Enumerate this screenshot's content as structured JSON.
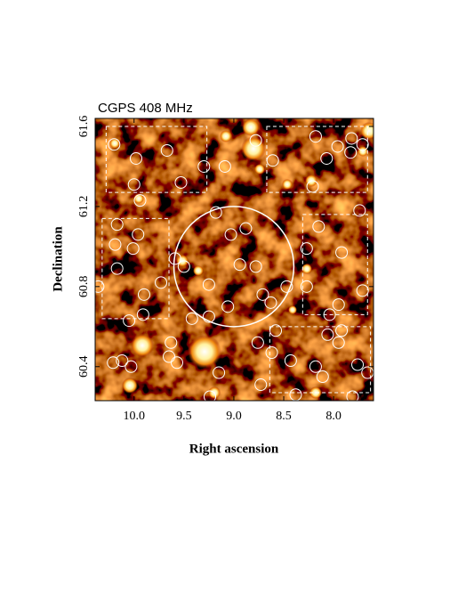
{
  "chart_data": {
    "type": "scatter",
    "title": "CGPS 408 MHz",
    "x_label": "Right ascension",
    "y_label": "Declination",
    "xlim": [
      10.39,
      7.6
    ],
    "ylim": [
      60.23,
      61.64
    ],
    "xticks": [
      {
        "value": 10,
        "label": "10.0"
      },
      9.5,
      {
        "value": 9,
        "label": "9.0"
      },
      8.5,
      {
        "value": 8,
        "label": "8.0"
      }
    ],
    "yticks": [
      60.4,
      60.8,
      61.2,
      61.6
    ],
    "color": "#ffffff",
    "sources": {
      "x": [
        10.2,
        9.98,
        9.67,
        9.3,
        9.09,
        10.0,
        9.53,
        9.94,
        9.18,
        9.03,
        8.88,
        10.17,
        9.96,
        10.19,
        10.01,
        9.59,
        9.5,
        8.94,
        8.78,
        9.25,
        9.73,
        10.17,
        10.36,
        9.9,
        9.42,
        9.25,
        9.06,
        8.71,
        8.63,
        8.47,
        8.27,
        8.15,
        7.92,
        8.27,
        8.04,
        7.95,
        7.71,
        7.74,
        7.71,
        8.18,
        8.07,
        7.96,
        7.83,
        7.82,
        8.21,
        8.61,
        8.78,
        10.05,
        9.91,
        9.63,
        9.65,
        9.57,
        10.21,
        10.12,
        10.03,
        9.24,
        9.15,
        8.73,
        8.62,
        8.43,
        8.18,
        7.95,
        7.92,
        8.06,
        7.76,
        7.66,
        8.76,
        8.58,
        7.81,
        8.38,
        8.11
      ],
      "y": [
        61.51,
        61.44,
        61.48,
        61.4,
        61.4,
        61.31,
        61.32,
        61.23,
        61.17,
        61.06,
        61.09,
        61.11,
        61.06,
        61.01,
        60.99,
        60.94,
        60.9,
        60.91,
        60.9,
        60.81,
        60.82,
        60.89,
        60.8,
        60.76,
        60.64,
        60.65,
        60.7,
        60.76,
        60.72,
        60.8,
        60.99,
        61.1,
        60.97,
        60.8,
        60.66,
        60.71,
        60.78,
        61.18,
        61.51,
        61.55,
        61.44,
        61.5,
        61.47,
        61.54,
        61.3,
        61.43,
        61.53,
        60.63,
        60.66,
        60.52,
        60.45,
        60.42,
        60.42,
        60.43,
        60.4,
        60.25,
        60.37,
        60.31,
        60.47,
        60.43,
        60.4,
        60.52,
        60.58,
        60.56,
        60.41,
        60.37,
        60.52,
        60.58,
        60.25,
        60.26,
        60.35
      ]
    },
    "field": {
      "x": 9.0,
      "y": 60.9,
      "radius": 0.3
    },
    "regions": [
      {
        "x": [
          10.28,
          9.27
        ],
        "y": [
          61.27,
          61.6
        ]
      },
      {
        "x": [
          8.67,
          7.66
        ],
        "y": [
          61.27,
          61.6
        ]
      },
      {
        "x": [
          10.32,
          9.65
        ],
        "y": [
          60.64,
          61.14
        ]
      },
      {
        "x": [
          8.31,
          7.66
        ],
        "y": [
          60.66,
          61.16
        ]
      },
      {
        "x": [
          8.64,
          7.63
        ],
        "y": [
          60.27,
          60.6
        ]
      }
    ]
  }
}
